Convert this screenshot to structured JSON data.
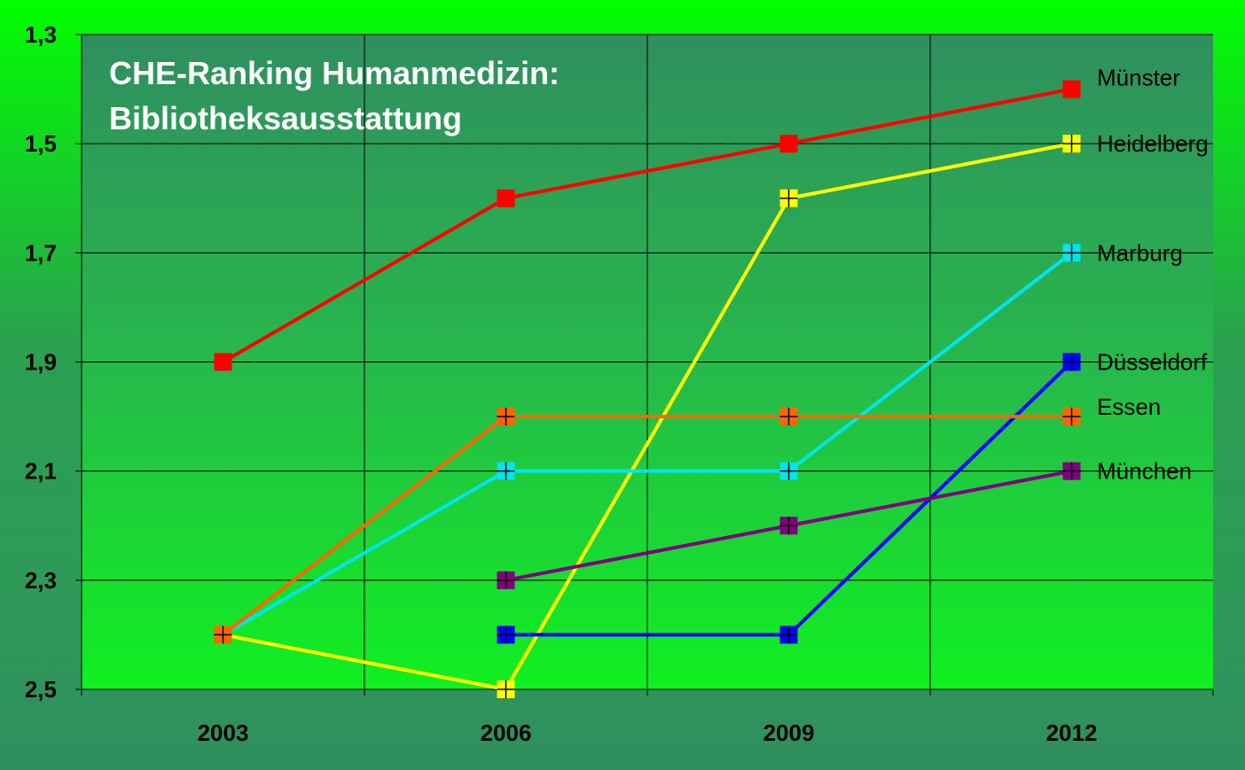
{
  "chart_data": {
    "type": "line",
    "title_lines": [
      "CHE-Ranking Humanmedizin:",
      "Bibliotheksausstattung"
    ],
    "xlabel": "",
    "ylabel": "",
    "categories": [
      "2003",
      "2006",
      "2009",
      "2012"
    ],
    "y_ticks": [
      "1,3",
      "1,5",
      "1,7",
      "1,9",
      "2,1",
      "2,3",
      "2,5"
    ],
    "ylim": [
      1.3,
      2.5
    ],
    "y_inverted": true,
    "grid": true,
    "legend": "right",
    "series": [
      {
        "name": "Münster",
        "color": "#ff0000",
        "marker": "square-icon",
        "values": [
          1.9,
          1.6,
          1.5,
          1.4
        ]
      },
      {
        "name": "Heidelberg",
        "color": "#ffff00",
        "marker": "square-cross-icon",
        "values": [
          2.4,
          2.5,
          1.6,
          1.5
        ]
      },
      {
        "name": "Marburg",
        "color": "#00e5ee",
        "marker": "square-cross-icon",
        "values": [
          2.4,
          2.1,
          2.1,
          1.7
        ]
      },
      {
        "name": "Düsseldorf",
        "color": "#0000ff",
        "marker": "square-cross-icon",
        "values": [
          null,
          2.4,
          2.4,
          1.9
        ]
      },
      {
        "name": "Essen",
        "color": "#ff6600",
        "marker": "square-cross-icon",
        "values": [
          2.4,
          2.0,
          2.0,
          2.0
        ]
      },
      {
        "name": "München",
        "color": "#800080",
        "marker": "square-cross-icon",
        "values": [
          null,
          2.3,
          2.2,
          2.1
        ]
      }
    ]
  }
}
